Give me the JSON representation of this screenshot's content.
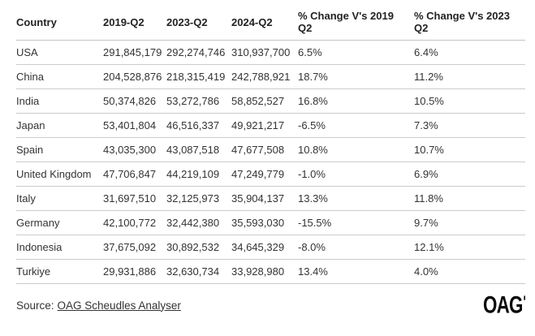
{
  "chart_data": {
    "type": "table",
    "columns": [
      {
        "key": "country",
        "label": "Country"
      },
      {
        "key": "2019-q2",
        "label": "2019-Q2"
      },
      {
        "key": "2023-q2",
        "label": "2023-Q2"
      },
      {
        "key": "2024-q2",
        "label": "2024-Q2"
      },
      {
        "key": "chg-2019",
        "label": "% Change V's 2019 Q2"
      },
      {
        "key": "chg-2023",
        "label": "% Change V's 2023 Q2"
      }
    ],
    "rows": [
      [
        "USA",
        "291,845,179",
        "292,274,746",
        "310,937,700",
        "6.5%",
        "6.4%"
      ],
      [
        "China",
        "204,528,876",
        "218,315,419",
        "242,788,921",
        "18.7%",
        "11.2%"
      ],
      [
        "India",
        "50,374,826",
        "53,272,786",
        "58,852,527",
        "16.8%",
        "10.5%"
      ],
      [
        "Japan",
        "53,401,804",
        "46,516,337",
        "49,921,217",
        "-6.5%",
        "7.3%"
      ],
      [
        "Spain",
        "43,035,300",
        "43,087,518",
        "47,677,508",
        "10.8%",
        "10.7%"
      ],
      [
        "United Kingdom",
        "47,706,847",
        "44,219,109",
        "47,249,779",
        "-1.0%",
        "6.9%"
      ],
      [
        "Italy",
        "31,697,510",
        "32,125,973",
        "35,904,137",
        "13.3%",
        "11.8%"
      ],
      [
        "Germany",
        "42,100,772",
        "32,442,380",
        "35,593,030",
        "-15.5%",
        "9.7%"
      ],
      [
        "Indonesia",
        "37,675,092",
        "30,892,532",
        "34,645,329",
        "-8.0%",
        "12.1%"
      ],
      [
        "Turkiye",
        "29,931,886",
        "32,630,734",
        "33,928,980",
        "13.4%",
        "4.0%"
      ]
    ]
  },
  "footer": {
    "source_prefix": "Source:",
    "source_link_label": "OAG Scheudles Analyser",
    "logo_text": "OAG"
  },
  "colors": {
    "header_text": "#222222",
    "body_text": "#333333",
    "divider": "#cccccc",
    "logo": "#0a0a0a",
    "background": "#ffffff"
  }
}
